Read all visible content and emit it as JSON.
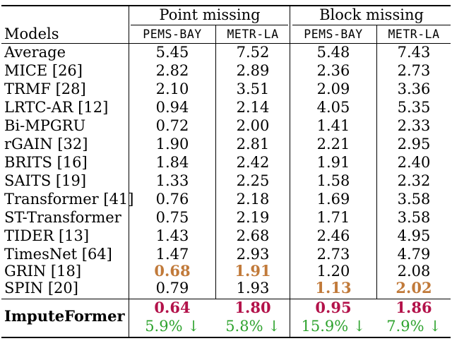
{
  "header": {
    "group_point": "Point missing",
    "group_block": "Block missing",
    "models_label": "Models",
    "datasets": [
      "PEMS-BAY",
      "METR-LA",
      "PEMS-BAY",
      "METR-LA"
    ]
  },
  "rows": [
    {
      "model": "Average",
      "values": [
        "5.45",
        "7.52",
        "5.48",
        "7.43"
      ]
    },
    {
      "model": "MICE [26]",
      "values": [
        "2.82",
        "2.89",
        "2.36",
        "2.73"
      ]
    },
    {
      "model": "TRMF [28]",
      "values": [
        "2.10",
        "3.51",
        "2.09",
        "3.36"
      ]
    },
    {
      "model": "LRTC-AR [12]",
      "values": [
        "0.94",
        "2.14",
        "4.05",
        "5.35"
      ]
    },
    {
      "model": "Bi-MPGRU",
      "values": [
        "0.72",
        "2.00",
        "1.41",
        "2.33"
      ]
    },
    {
      "model": "rGAIN [32]",
      "values": [
        "1.90",
        "2.81",
        "2.21",
        "2.95"
      ]
    },
    {
      "model": "BRITS [16]",
      "values": [
        "1.84",
        "2.42",
        "1.91",
        "2.40"
      ]
    },
    {
      "model": "SAITS [19]",
      "values": [
        "1.33",
        "2.25",
        "1.58",
        "2.32"
      ]
    },
    {
      "model": "Transformer [41]",
      "values": [
        "0.76",
        "2.18",
        "1.69",
        "3.58"
      ]
    },
    {
      "model": "ST-Transformer",
      "values": [
        "0.75",
        "2.19",
        "1.71",
        "3.58"
      ]
    },
    {
      "model": "TIDER [13]",
      "values": [
        "1.43",
        "2.68",
        "2.46",
        "4.95"
      ]
    },
    {
      "model": "TimesNet [64]",
      "values": [
        "1.47",
        "2.93",
        "2.73",
        "4.79"
      ]
    },
    {
      "model": "GRIN [18]",
      "values": [
        "0.68",
        "1.91",
        "1.20",
        "2.08"
      ]
    },
    {
      "model": "SPIN [20]",
      "values": [
        "0.79",
        "1.93",
        "1.13",
        "2.02"
      ]
    }
  ],
  "ours": {
    "model": "ImputeFormer",
    "values": [
      "0.64",
      "1.80",
      "0.95",
      "1.86"
    ],
    "improvements": [
      "5.9% ↓",
      "5.8% ↓",
      "15.9% ↓",
      "7.9% ↓"
    ]
  },
  "colors": {
    "best": "#b3124a",
    "second_best": "#c17a3a",
    "improvement": "#2fa32f"
  }
}
